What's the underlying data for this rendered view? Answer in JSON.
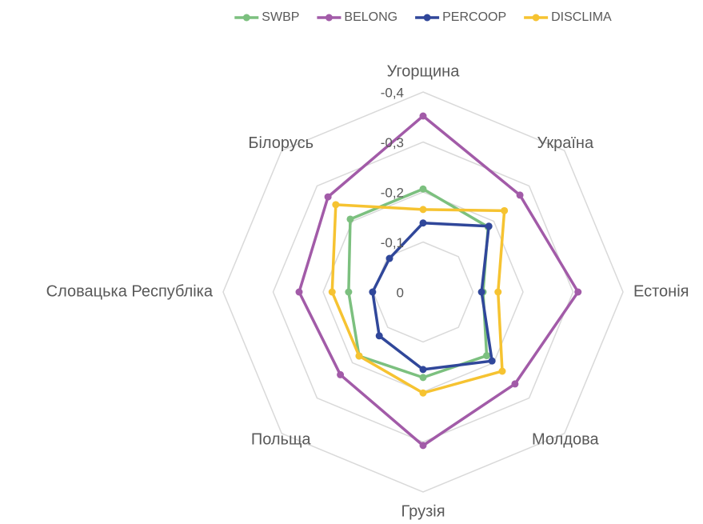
{
  "chart_data": {
    "type": "radar",
    "categories": [
      "Угорщина",
      "Україна",
      "Естонія",
      "Молдова",
      "Грузія",
      "Польща",
      "Словацька Республіка",
      "Білорусь"
    ],
    "ylim": [
      0,
      -0.4
    ],
    "yticks": [
      0,
      {
        "value": -0.1,
        "label": "-0,1"
      },
      {
        "value": -0.2,
        "label": "-0,2"
      },
      {
        "value": -0.3,
        "label": "-0,3"
      },
      {
        "value": -0.4,
        "label": "-0,4"
      }
    ],
    "grid": true,
    "legend": "top",
    "series": [
      {
        "name": "SWBP",
        "color": "#7cc07f",
        "values": [
          -0.206,
          -0.184,
          -0.12,
          -0.18,
          -0.171,
          -0.181,
          -0.149,
          -0.206
        ]
      },
      {
        "name": "BELONG",
        "color": "#a25ba8",
        "values": [
          -0.352,
          -0.274,
          -0.31,
          -0.26,
          -0.307,
          -0.234,
          -0.248,
          -0.269
        ]
      },
      {
        "name": "PERCOOP",
        "color": "#30479a",
        "values": [
          -0.138,
          -0.186,
          -0.117,
          -0.195,
          -0.155,
          -0.124,
          -0.101,
          -0.095
        ]
      },
      {
        "name": "DISCLIMA",
        "color": "#f6c331",
        "values": [
          -0.165,
          -0.23,
          -0.15,
          -0.224,
          -0.202,
          -0.181,
          -0.182,
          -0.247
        ]
      }
    ]
  }
}
